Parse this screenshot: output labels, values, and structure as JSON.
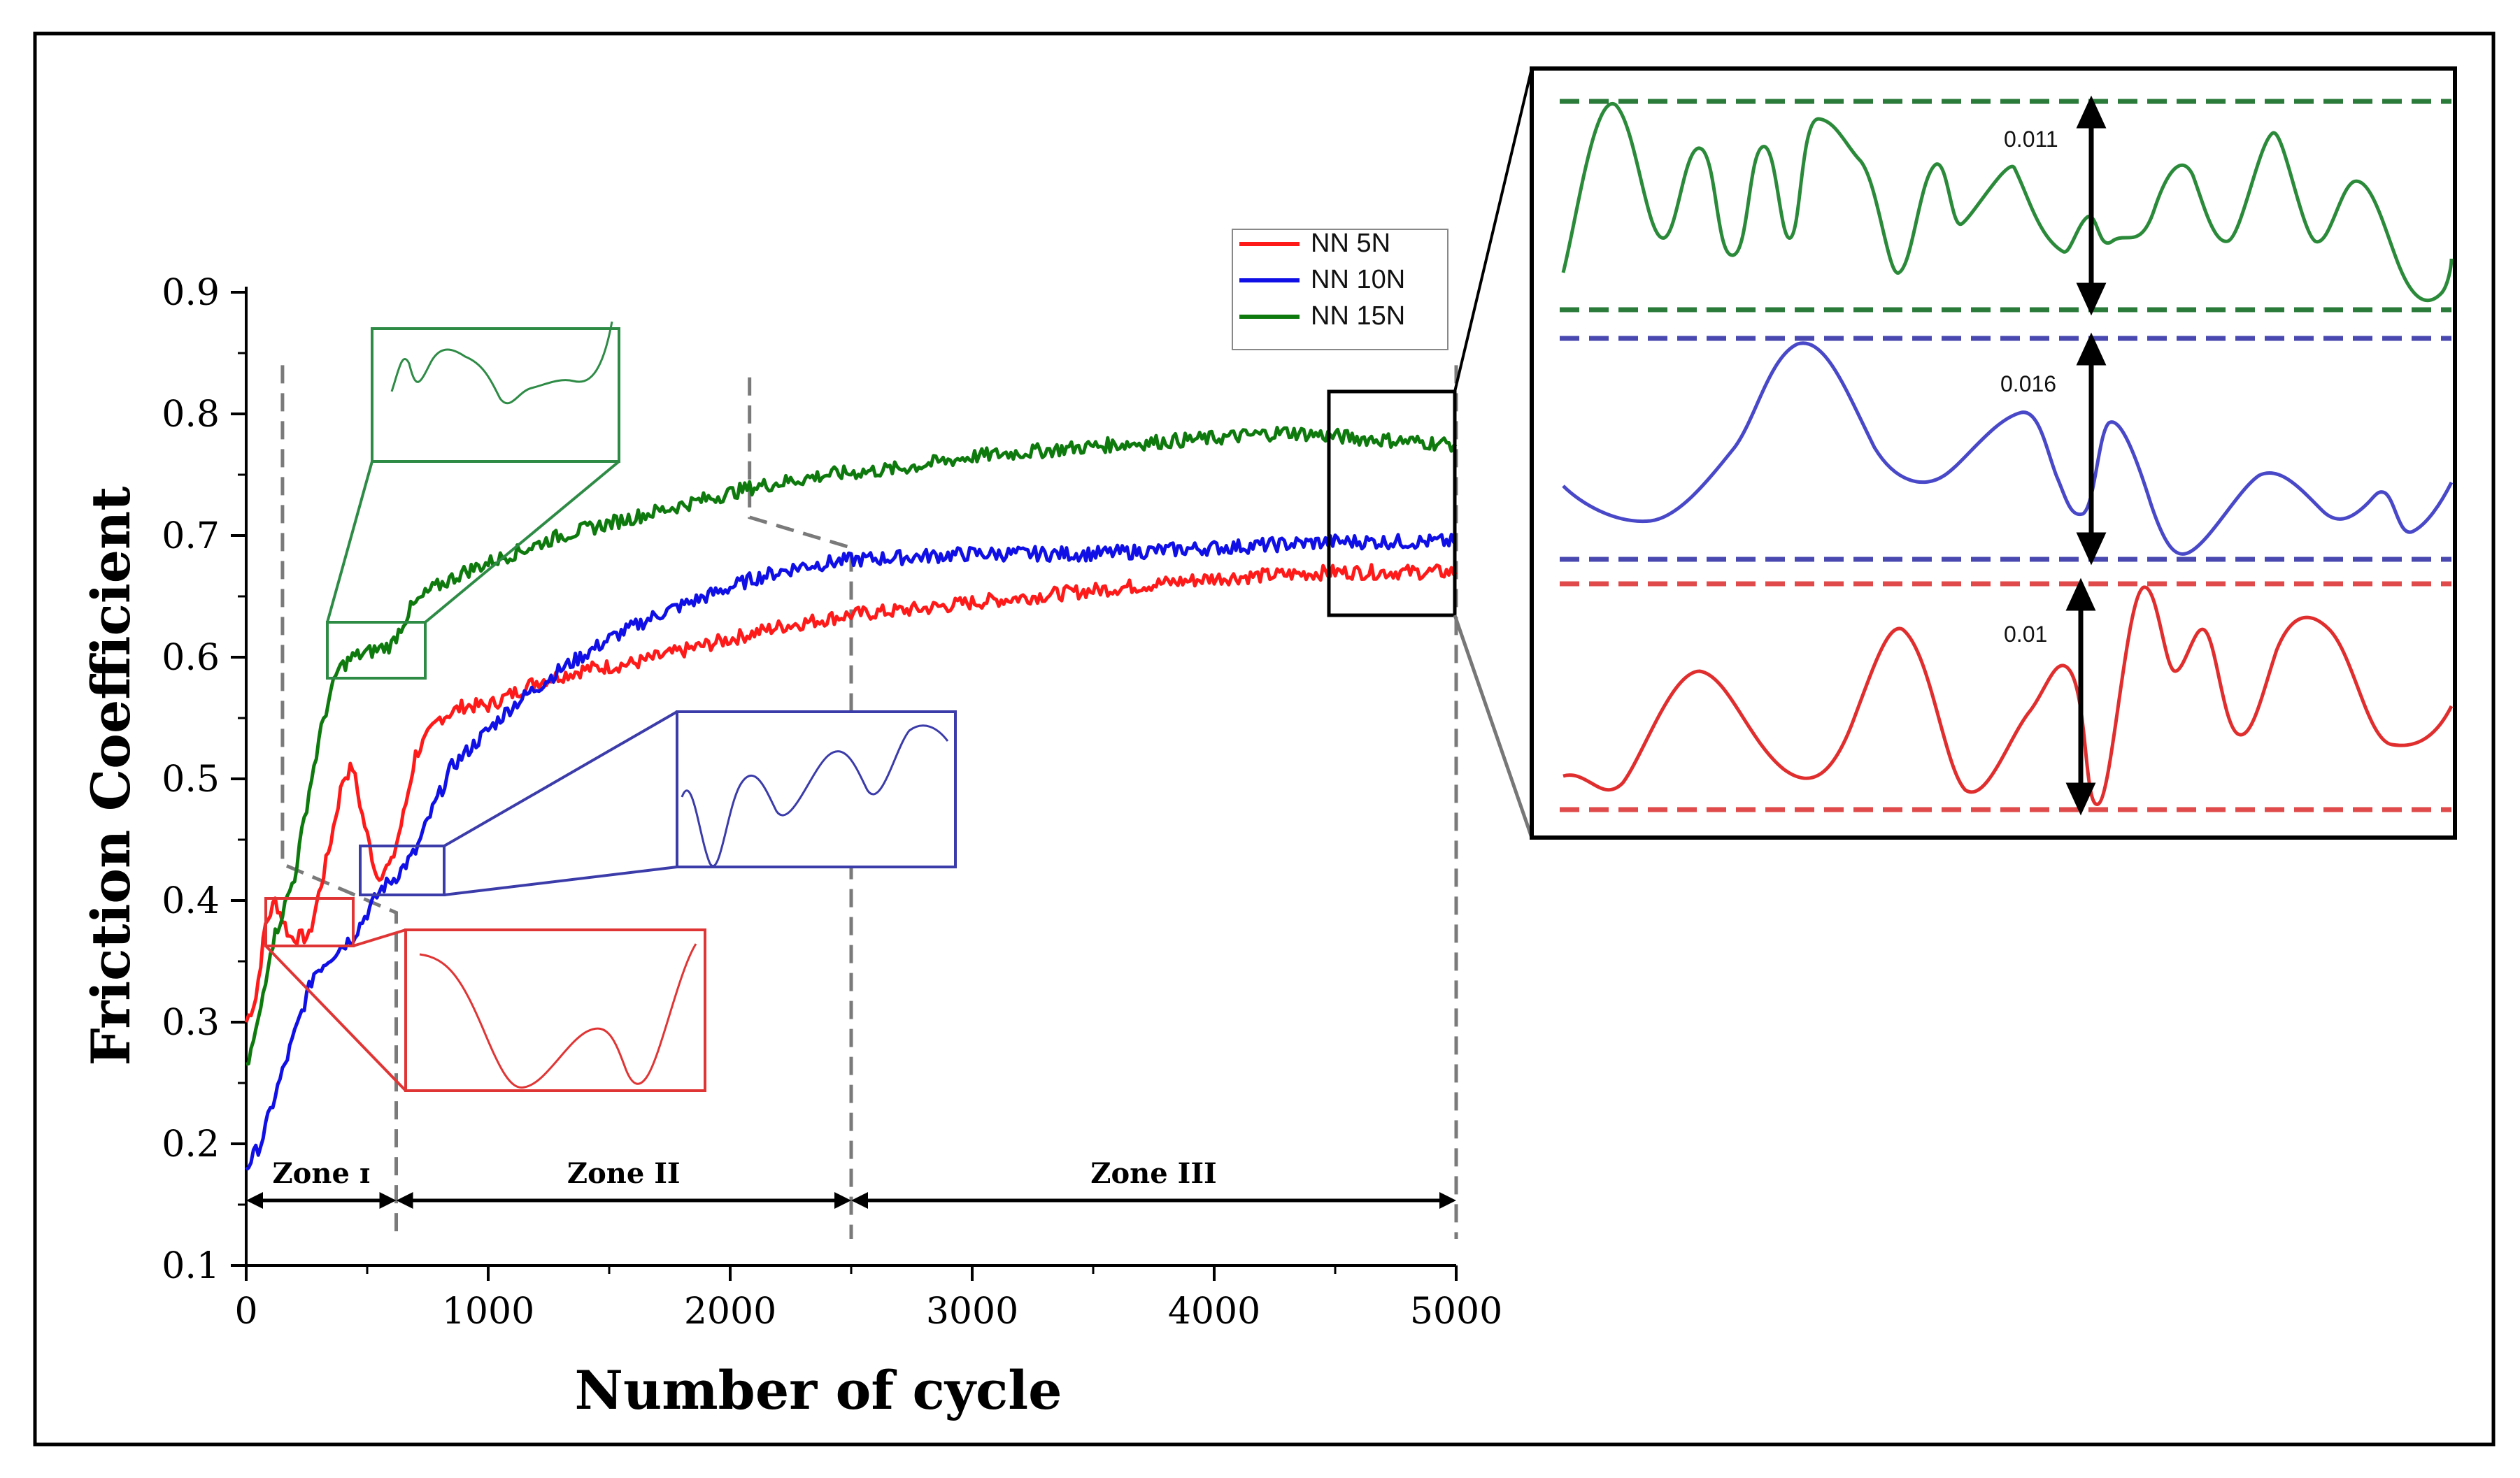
{
  "chart_data": {
    "type": "line",
    "xlabel": "Number of cycle",
    "ylabel": "Friction Coefficient",
    "xlim": [
      0,
      5000
    ],
    "ylim": [
      0.1,
      0.9
    ],
    "x_ticks": [
      "0",
      "1000",
      "2000",
      "3000",
      "4000",
      "5000"
    ],
    "y_ticks": [
      "0.1",
      "0.2",
      "0.3",
      "0.4",
      "0.5",
      "0.6",
      "0.7",
      "0.8",
      "0.9"
    ],
    "legend_position": "top-right",
    "series": [
      {
        "name": "NN 5N",
        "color": "#ff1a1a",
        "points": [
          [
            0,
            0.3
          ],
          [
            40,
            0.32
          ],
          [
            80,
            0.38
          ],
          [
            120,
            0.4
          ],
          [
            180,
            0.37
          ],
          [
            260,
            0.37
          ],
          [
            340,
            0.44
          ],
          [
            400,
            0.5
          ],
          [
            440,
            0.51
          ],
          [
            480,
            0.47
          ],
          [
            540,
            0.42
          ],
          [
            600,
            0.43
          ],
          [
            650,
            0.47
          ],
          [
            700,
            0.52
          ],
          [
            800,
            0.55
          ],
          [
            900,
            0.56
          ],
          [
            1000,
            0.56
          ],
          [
            1100,
            0.57
          ],
          [
            1200,
            0.58
          ],
          [
            1400,
            0.59
          ],
          [
            1600,
            0.595
          ],
          [
            1800,
            0.605
          ],
          [
            2000,
            0.615
          ],
          [
            2200,
            0.625
          ],
          [
            2500,
            0.635
          ],
          [
            2800,
            0.64
          ],
          [
            3000,
            0.645
          ],
          [
            3500,
            0.655
          ],
          [
            4000,
            0.665
          ],
          [
            4500,
            0.67
          ],
          [
            5000,
            0.67
          ]
        ]
      },
      {
        "name": "NN 10N",
        "color": "#1010e6",
        "points": [
          [
            0,
            0.18
          ],
          [
            60,
            0.2
          ],
          [
            120,
            0.24
          ],
          [
            200,
            0.29
          ],
          [
            280,
            0.34
          ],
          [
            380,
            0.36
          ],
          [
            440,
            0.37
          ],
          [
            500,
            0.39
          ],
          [
            560,
            0.41
          ],
          [
            620,
            0.42
          ],
          [
            700,
            0.44
          ],
          [
            760,
            0.47
          ],
          [
            850,
            0.51
          ],
          [
            950,
            0.53
          ],
          [
            1100,
            0.56
          ],
          [
            1300,
            0.59
          ],
          [
            1500,
            0.615
          ],
          [
            1700,
            0.635
          ],
          [
            1900,
            0.65
          ],
          [
            2100,
            0.665
          ],
          [
            2300,
            0.675
          ],
          [
            2500,
            0.68
          ],
          [
            3000,
            0.685
          ],
          [
            3500,
            0.685
          ],
          [
            4000,
            0.69
          ],
          [
            4500,
            0.695
          ],
          [
            5000,
            0.695
          ]
        ]
      },
      {
        "name": "NN 15N",
        "color": "#0e7a0e",
        "points": [
          [
            0,
            0.26
          ],
          [
            50,
            0.3
          ],
          [
            100,
            0.36
          ],
          [
            150,
            0.39
          ],
          [
            200,
            0.42
          ],
          [
            260,
            0.49
          ],
          [
            320,
            0.55
          ],
          [
            380,
            0.59
          ],
          [
            440,
            0.6
          ],
          [
            520,
            0.605
          ],
          [
            600,
            0.61
          ],
          [
            680,
            0.64
          ],
          [
            760,
            0.655
          ],
          [
            900,
            0.67
          ],
          [
            1100,
            0.685
          ],
          [
            1300,
            0.7
          ],
          [
            1500,
            0.71
          ],
          [
            1700,
            0.72
          ],
          [
            1900,
            0.73
          ],
          [
            2000,
            0.735
          ],
          [
            2100,
            0.74
          ],
          [
            2400,
            0.75
          ],
          [
            2700,
            0.755
          ],
          [
            3000,
            0.765
          ],
          [
            3300,
            0.77
          ],
          [
            3600,
            0.775
          ],
          [
            4000,
            0.78
          ],
          [
            4300,
            0.785
          ],
          [
            4600,
            0.78
          ],
          [
            5000,
            0.775
          ]
        ]
      }
    ],
    "zones": [
      {
        "label": "Zone ɪ",
        "from": 0,
        "to": 620
      },
      {
        "label": "Zone II",
        "from": 620,
        "to": 2500
      },
      {
        "label": "Zone III",
        "from": 2500,
        "to": 5000
      }
    ],
    "inset_annotations": [
      {
        "label": "0.011",
        "color": "#2a7a3a"
      },
      {
        "label": "0.016",
        "color": "#5050b8"
      },
      {
        "label": "0.01",
        "color": "#e04a4a"
      }
    ]
  }
}
